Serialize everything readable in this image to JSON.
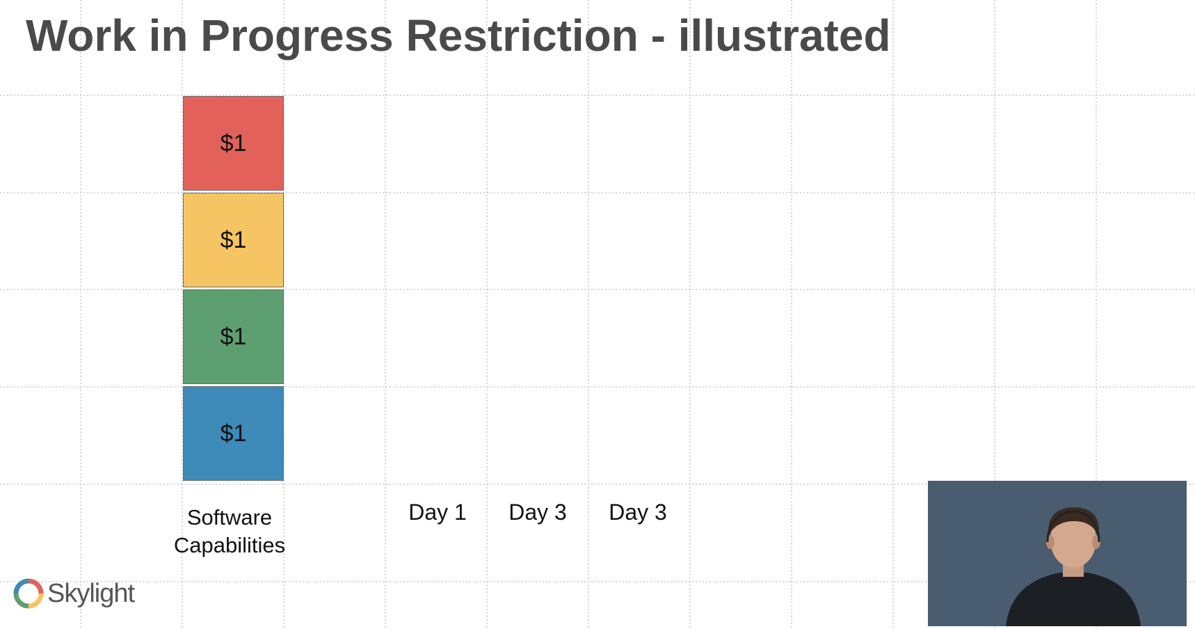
{
  "slide": {
    "title": "Work in Progress Restriction - illustrated"
  },
  "capability_stack": {
    "caption_line1": "Software",
    "caption_line2": "Capabilities",
    "blocks": [
      {
        "label": "$1",
        "color": "#e2625a"
      },
      {
        "label": "$1",
        "color": "#f6c563"
      },
      {
        "label": "$1",
        "color": "#5e9f71"
      },
      {
        "label": "$1",
        "color": "#3e8ab8"
      }
    ]
  },
  "columns": [
    {
      "label": "Day 1"
    },
    {
      "label": "Day 3"
    },
    {
      "label": "Day 3"
    }
  ],
  "branding": {
    "logo_text": "Skylight",
    "logo_colors": [
      "#e2625a",
      "#f6c563",
      "#5e9f71",
      "#3e8ab8"
    ]
  },
  "colors": {
    "grid_line": "#c9c9c9",
    "title": "#4a4a4a",
    "webcam_background": "#4a5c6f"
  }
}
